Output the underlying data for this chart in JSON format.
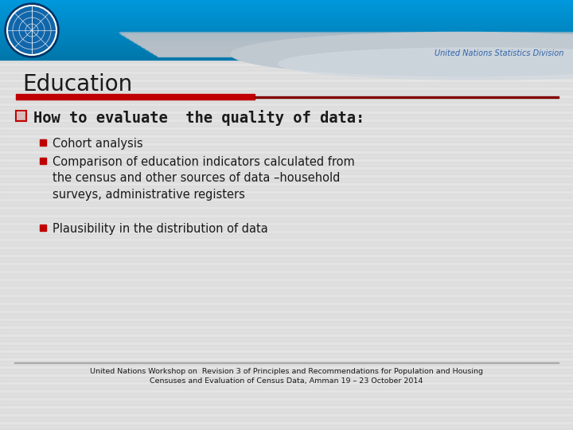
{
  "title": "Education",
  "header_subtitle": "United Nations Statistics Division",
  "main_question": "How to evaluate  the quality of data:",
  "bullet_points": [
    "Cohort analysis",
    "Comparison of education indicators calculated from\nthe census and other sources of data –household\nsurveys, administrative registers",
    "Plausibility in the distribution of data"
  ],
  "footer_line1": "United Nations Workshop on  Revision 3 of Principles and Recommendations for Population and Housing",
  "footer_line2": "Censuses and Evaluation of Census Data, Amman 19 – 23 October 2014",
  "bg_color": "#dcdcdc",
  "red_bar_color": "#c00000",
  "dark_red_line": "#800000",
  "title_color": "#1a1a1a",
  "question_color": "#1a1a1a",
  "bullet_color": "#1a1a1a",
  "footer_color": "#1a1a1a",
  "header_top_color": "#0088cc",
  "header_mid_color": "#006699",
  "header_wave_color": "#c0c8d0",
  "un_subtitle_color": "#3366aa"
}
